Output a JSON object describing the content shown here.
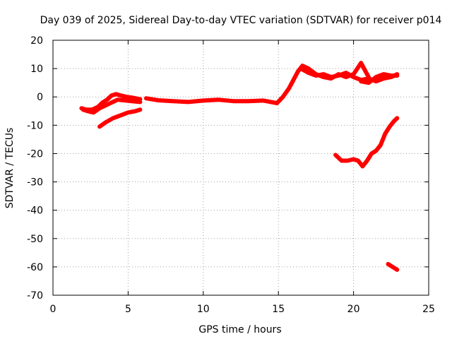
{
  "chart_data": {
    "type": "line",
    "title": "Day 039 of 2025, Sidereal Day-to-day VTEC variation (SDTVAR) for receiver p014",
    "xlabel": "GPS time / hours",
    "ylabel": "SDTVAR / TECUs",
    "xlim": [
      0,
      25
    ],
    "ylim": [
      -70,
      20
    ],
    "xticks": [
      0,
      5,
      10,
      15,
      20,
      25
    ],
    "yticks": [
      -70,
      -60,
      -50,
      -40,
      -30,
      -20,
      -10,
      0,
      10,
      20
    ],
    "grid": true,
    "colors": {
      "series": "#ff0000",
      "grid": "#a0a0a0",
      "frame": "#000000"
    },
    "series": [
      {
        "x": [
          1.9,
          2.2,
          2.6,
          3.0,
          3.3,
          3.6,
          3.9,
          4.2,
          4.5,
          4.9,
          5.3,
          5.8
        ],
        "y": [
          -4,
          -4.5,
          -4.5,
          -3.5,
          -2,
          -1,
          0.5,
          1,
          0.5,
          0,
          -0.3,
          -0.8
        ]
      },
      {
        "x": [
          2.0,
          2.3,
          2.7,
          3.1,
          3.5,
          3.9,
          4.3,
          4.7,
          5.2,
          5.8
        ],
        "y": [
          -4.5,
          -5,
          -5.5,
          -4,
          -3,
          -2,
          -1,
          -1.2,
          -1.5,
          -1.8
        ]
      },
      {
        "x": [
          3.1,
          3.5,
          4.0,
          4.5,
          5.0,
          5.5,
          5.8
        ],
        "y": [
          -10.5,
          -9,
          -7.5,
          -6.5,
          -5.5,
          -5,
          -4.5
        ]
      },
      {
        "x": [
          6.2,
          7.0,
          8.0,
          9.0,
          10.0,
          11.0,
          12.0,
          13.0,
          14.0,
          14.5,
          14.9
        ],
        "y": [
          -0.5,
          -1.2,
          -1.5,
          -1.8,
          -1.3,
          -1.0,
          -1.5,
          -1.5,
          -1.3,
          -1.8,
          -2.2
        ]
      },
      {
        "x": [
          14.9,
          15.3,
          15.7,
          16.0,
          16.3,
          16.6,
          17.0,
          17.5,
          18.0,
          18.5,
          19.0,
          19.5,
          20.0,
          20.5,
          20.8,
          21.0
        ],
        "y": [
          -2.2,
          0,
          3,
          6,
          9,
          11,
          10,
          8,
          7,
          6.5,
          8,
          7,
          8,
          12,
          9,
          7
        ]
      },
      {
        "x": [
          16.5,
          17.0,
          17.5,
          18.0,
          18.5,
          19.0,
          19.5,
          20.0,
          20.5,
          21.0,
          21.5,
          22.0,
          22.5,
          22.9
        ],
        "y": [
          10,
          8.5,
          7.5,
          8,
          7,
          7.5,
          8.5,
          7,
          6,
          6.5,
          5.5,
          6.5,
          7,
          8
        ]
      },
      {
        "x": [
          20.5,
          21.0,
          21.5,
          22.0,
          22.5,
          22.9
        ],
        "y": [
          5.5,
          5,
          7,
          8,
          7.5,
          7.5
        ]
      },
      {
        "x": [
          18.8,
          19.2,
          19.6,
          20.0,
          20.3,
          20.6,
          20.9,
          21.2,
          21.5,
          21.8,
          22.1,
          22.4,
          22.7,
          22.9
        ],
        "y": [
          -20.5,
          -22.5,
          -22.5,
          -22,
          -22.5,
          -24.5,
          -22.5,
          -20,
          -19,
          -17,
          -13,
          -10.5,
          -8.5,
          -7.5
        ]
      },
      {
        "x": [
          22.3,
          22.6,
          22.9
        ],
        "y": [
          -59,
          -60,
          -61
        ]
      }
    ]
  }
}
